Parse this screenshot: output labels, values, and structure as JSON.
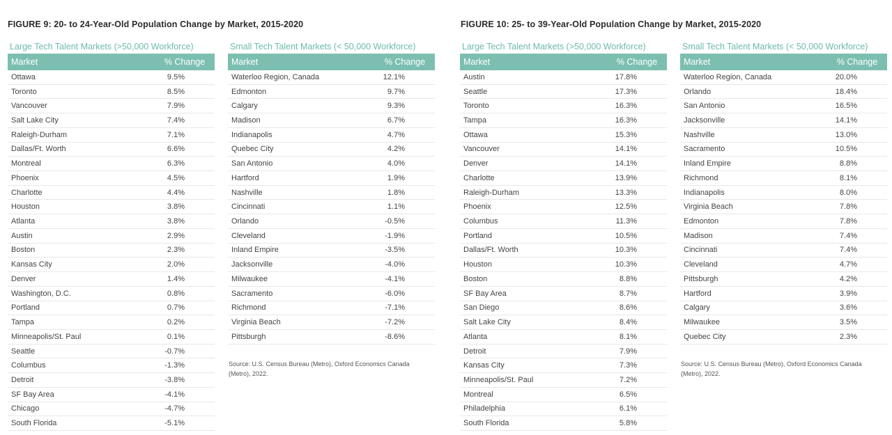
{
  "figure9": {
    "title": "FIGURE 9: 20- to 24-Year-Old Population Change by Market, 2015-2020",
    "large": {
      "heading": "Large Tech Talent Markets (>50,000 Workforce)",
      "col_market": "Market",
      "col_change": "% Change",
      "rows": [
        {
          "market": "Ottawa",
          "change": "9.5%"
        },
        {
          "market": "Toronto",
          "change": "8.5%"
        },
        {
          "market": "Vancouver",
          "change": "7.9%"
        },
        {
          "market": "Salt Lake City",
          "change": "7.4%"
        },
        {
          "market": "Raleigh-Durham",
          "change": "7.1%"
        },
        {
          "market": "Dallas/Ft. Worth",
          "change": "6.6%"
        },
        {
          "market": "Montreal",
          "change": "6.3%"
        },
        {
          "market": "Phoenix",
          "change": "4.5%"
        },
        {
          "market": "Charlotte",
          "change": "4.4%"
        },
        {
          "market": "Houston",
          "change": "3.8%"
        },
        {
          "market": "Atlanta",
          "change": "3.8%"
        },
        {
          "market": "Austin",
          "change": "2.9%"
        },
        {
          "market": "Boston",
          "change": "2.3%"
        },
        {
          "market": "Kansas City",
          "change": "2.0%"
        },
        {
          "market": "Denver",
          "change": "1.4%"
        },
        {
          "market": "Washington, D.C.",
          "change": "0.8%"
        },
        {
          "market": "Portland",
          "change": "0.7%"
        },
        {
          "market": "Tampa",
          "change": "0.2%"
        },
        {
          "market": "Minneapolis/St. Paul",
          "change": "0.1%"
        },
        {
          "market": "Seattle",
          "change": "-0.7%"
        },
        {
          "market": "Columbus",
          "change": "-1.3%"
        },
        {
          "market": "Detroit",
          "change": "-3.8%"
        },
        {
          "market": "SF Bay Area",
          "change": "-4.1%"
        },
        {
          "market": "Chicago",
          "change": "-4.7%"
        },
        {
          "market": "South Florida",
          "change": "-5.1%"
        }
      ]
    },
    "small": {
      "heading": "Small Tech Talent Markets (< 50,000 Workforce)",
      "col_market": "Market",
      "col_change": "% Change",
      "rows": [
        {
          "market": "Waterloo Region, Canada",
          "change": "12.1%"
        },
        {
          "market": "Edmonton",
          "change": "9.7%"
        },
        {
          "market": "Calgary",
          "change": "9.3%"
        },
        {
          "market": "Madison",
          "change": "6.7%"
        },
        {
          "market": "Indianapolis",
          "change": "4.7%"
        },
        {
          "market": "Quebec City",
          "change": "4.2%"
        },
        {
          "market": "San Antonio",
          "change": "4.0%"
        },
        {
          "market": "Hartford",
          "change": "1.9%"
        },
        {
          "market": "Nashville",
          "change": "1.8%"
        },
        {
          "market": "Cincinnati",
          "change": "1.1%"
        },
        {
          "market": "Orlando",
          "change": "-0.5%"
        },
        {
          "market": "Cleveland",
          "change": "-1.9%"
        },
        {
          "market": "Inland Empire",
          "change": "-3.5%"
        },
        {
          "market": "Jacksonville",
          "change": "-4.0%"
        },
        {
          "market": "Milwaukee",
          "change": "-4.1%"
        },
        {
          "market": "Sacramento",
          "change": "-6.0%"
        },
        {
          "market": "Richmond",
          "change": "-7.1%"
        },
        {
          "market": "Virginia Beach",
          "change": "-7.2%"
        },
        {
          "market": "Pittsburgh",
          "change": "-8.6%"
        }
      ]
    },
    "source": "Source: U.S. Census Bureau (Metro), Oxford Economics Canada (Metro), 2022."
  },
  "figure10": {
    "title": "FIGURE 10: 25- to 39-Year-Old Population Change by Market, 2015-2020",
    "large": {
      "heading": "Large Tech Talent Markets (>50,000 Workforce)",
      "col_market": "Market",
      "col_change": "% Change",
      "rows": [
        {
          "market": "Austin",
          "change": "17.8%"
        },
        {
          "market": "Seattle",
          "change": "17.3%"
        },
        {
          "market": "Toronto",
          "change": "16.3%"
        },
        {
          "market": "Tampa",
          "change": "16.3%"
        },
        {
          "market": "Ottawa",
          "change": "15.3%"
        },
        {
          "market": "Vancouver",
          "change": "14.1%"
        },
        {
          "market": "Denver",
          "change": "14.1%"
        },
        {
          "market": "Charlotte",
          "change": "13.9%"
        },
        {
          "market": "Raleigh-Durham",
          "change": "13.3%"
        },
        {
          "market": "Phoenix",
          "change": "12.5%"
        },
        {
          "market": "Columbus",
          "change": "11.3%"
        },
        {
          "market": "Portland",
          "change": "10.5%"
        },
        {
          "market": "Dallas/Ft. Worth",
          "change": "10.3%"
        },
        {
          "market": "Houston",
          "change": "10.3%"
        },
        {
          "market": "Boston",
          "change": "8.8%"
        },
        {
          "market": "SF Bay Area",
          "change": "8.7%"
        },
        {
          "market": "San Diego",
          "change": "8.6%"
        },
        {
          "market": "Salt Lake City",
          "change": "8.4%"
        },
        {
          "market": "Atlanta",
          "change": "8.1%"
        },
        {
          "market": "Detroit",
          "change": "7.9%"
        },
        {
          "market": "Kansas City",
          "change": "7.3%"
        },
        {
          "market": "Minneapolis/St. Paul",
          "change": "7.2%"
        },
        {
          "market": "Montreal",
          "change": "6.5%"
        },
        {
          "market": "Philadelphia",
          "change": "6.1%"
        },
        {
          "market": "South Florida",
          "change": "5.8%"
        }
      ]
    },
    "small": {
      "heading": "Small Tech Talent Markets (< 50,000 Workforce)",
      "col_market": "Market",
      "col_change": "% Change",
      "rows": [
        {
          "market": "Waterloo Region, Canada",
          "change": "20.0%"
        },
        {
          "market": "Orlando",
          "change": "18.4%"
        },
        {
          "market": "San Antonio",
          "change": "16.5%"
        },
        {
          "market": "Jacksonville",
          "change": "14.1%"
        },
        {
          "market": "Nashville",
          "change": "13.0%"
        },
        {
          "market": "Sacramento",
          "change": "10.5%"
        },
        {
          "market": "Inland Empire",
          "change": "8.8%"
        },
        {
          "market": "Richmond",
          "change": "8.1%"
        },
        {
          "market": "Indianapolis",
          "change": "8.0%"
        },
        {
          "market": "Virginia Beach",
          "change": "7.8%"
        },
        {
          "market": "Edmonton",
          "change": "7.8%"
        },
        {
          "market": "Madison",
          "change": "7.4%"
        },
        {
          "market": "Cincinnati",
          "change": "7.4%"
        },
        {
          "market": "Cleveland",
          "change": "4.7%"
        },
        {
          "market": "Pittsburgh",
          "change": "4.2%"
        },
        {
          "market": "Hartford",
          "change": "3.9%"
        },
        {
          "market": "Calgary",
          "change": "3.6%"
        },
        {
          "market": "Milwaukee",
          "change": "3.5%"
        },
        {
          "market": "Quebec City",
          "change": "2.3%"
        }
      ]
    },
    "source": "Source: U.S. Census Bureau (Metro), Oxford Economics Canada (Metro), 2022."
  }
}
